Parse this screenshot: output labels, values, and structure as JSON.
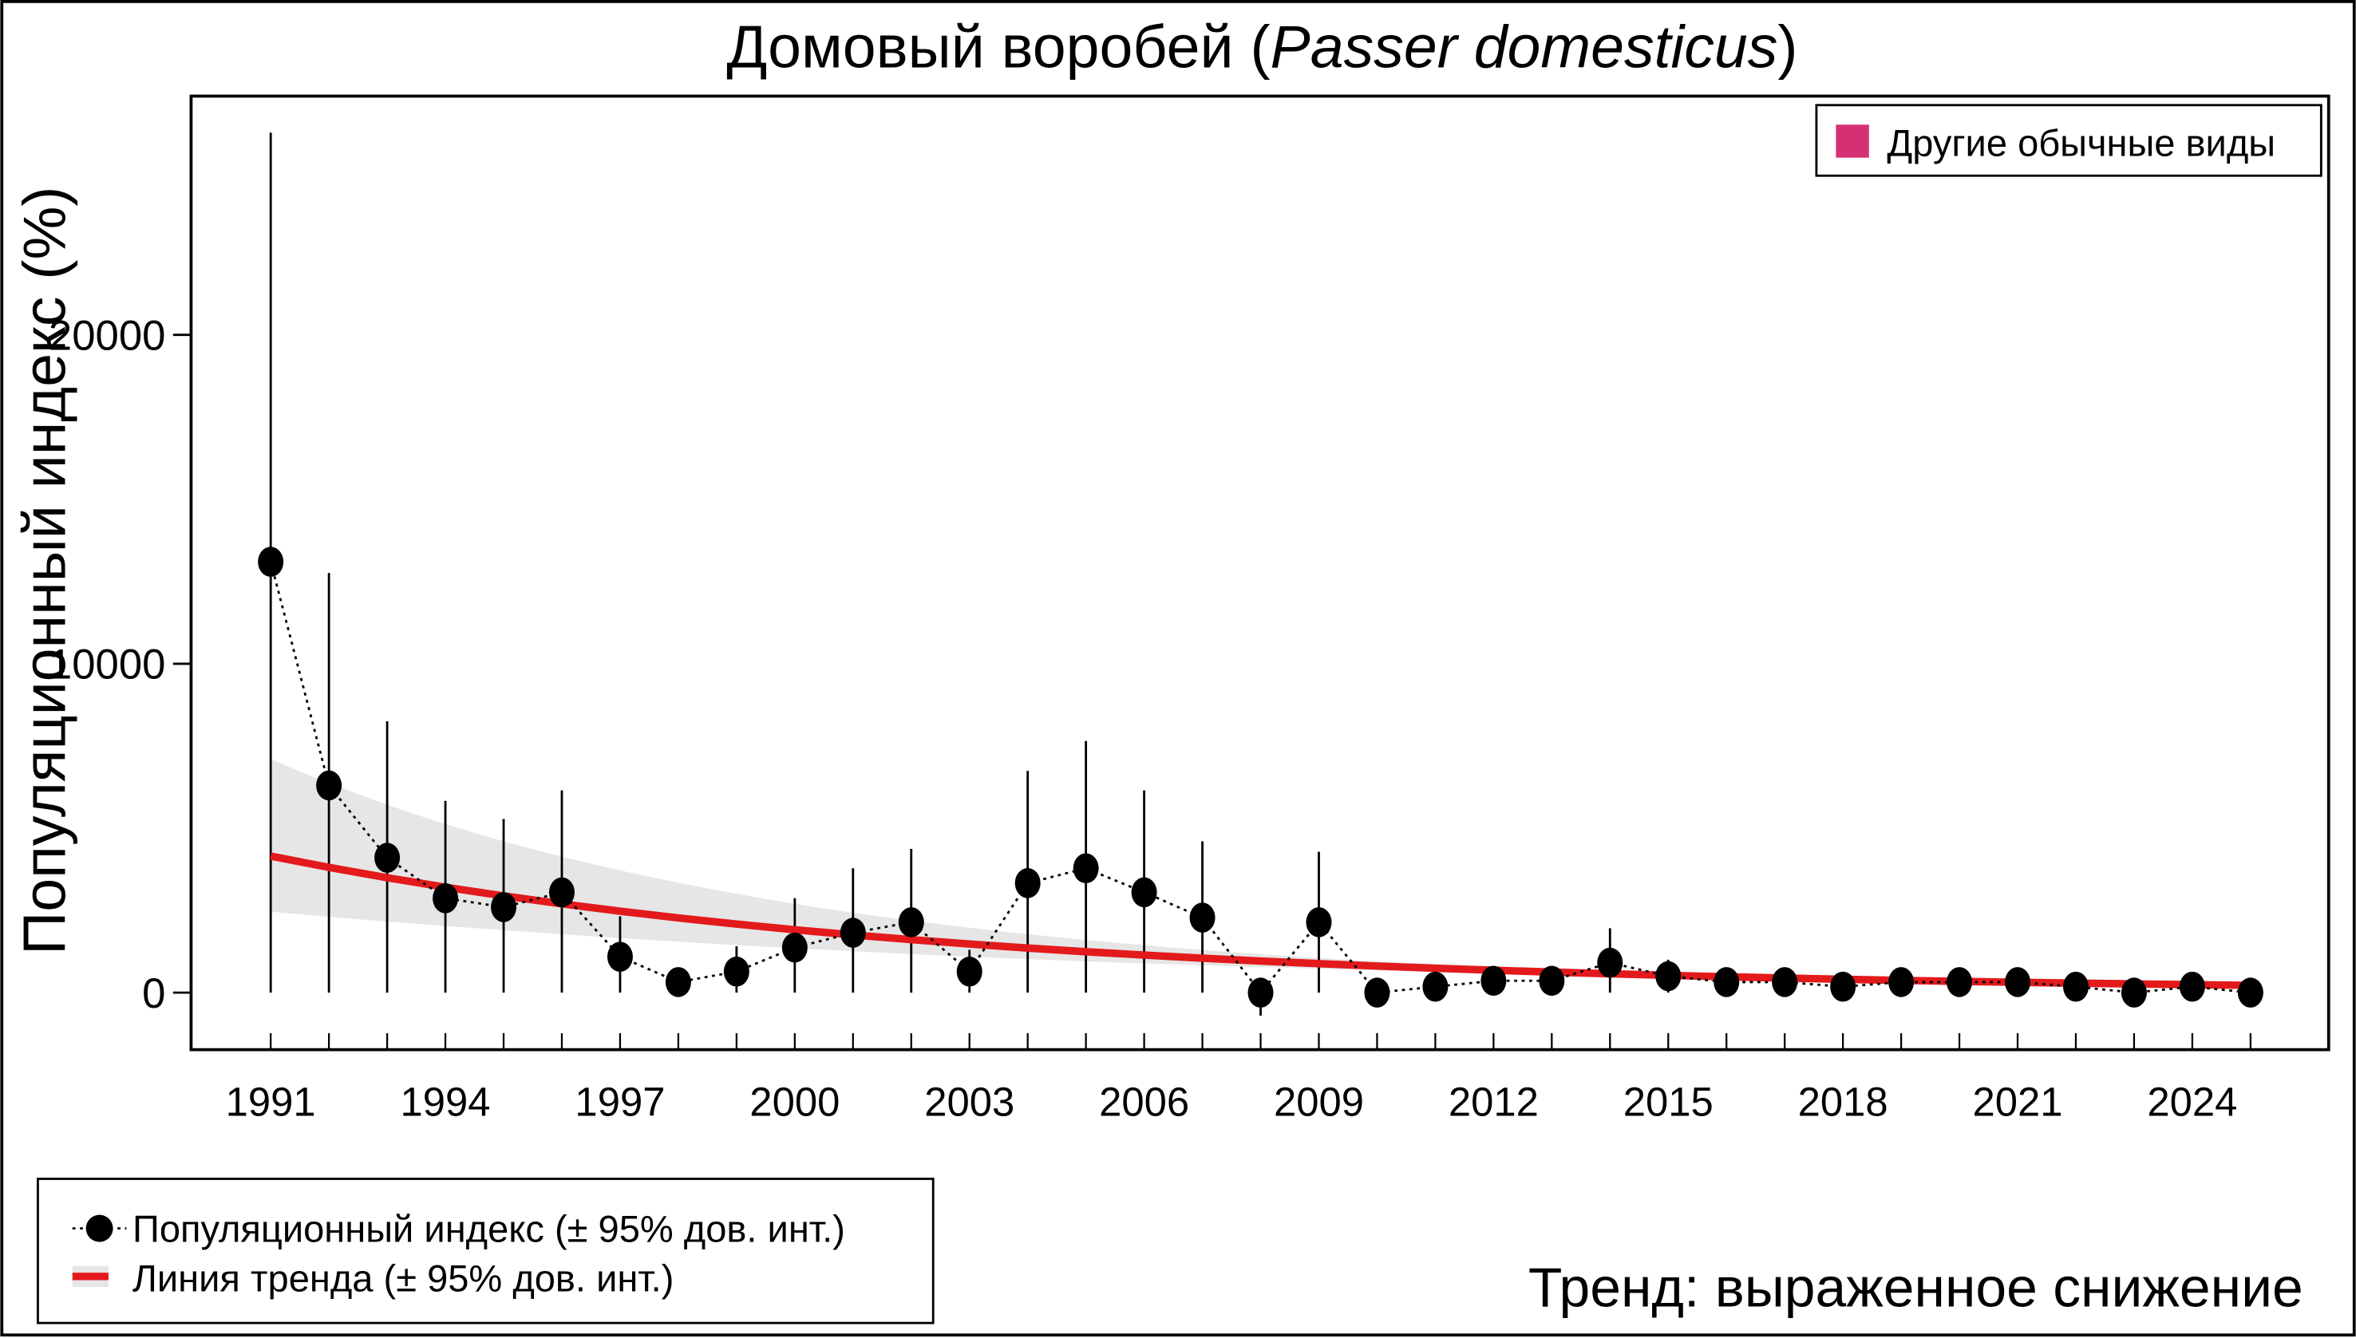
{
  "chart_data": {
    "type": "line",
    "title": "Домовый воробей (",
    "title_italic": "Passer domesticus",
    "title_end": ")",
    "ylabel": "Популяционный индекс (%)",
    "xlabel": "",
    "xlim": [
      1990.6,
      2025.4
    ],
    "ylim": [
      -1750,
      27100
    ],
    "y_ticks": [
      0,
      10000,
      20000
    ],
    "y_tick_labels": [
      "0",
      "10000",
      "20000"
    ],
    "x_tick_labels": [
      "1991",
      "1994",
      "1997",
      "2000",
      "2003",
      "2006",
      "2009",
      "2012",
      "2015",
      "2018",
      "2021",
      "2024"
    ],
    "grid": false,
    "years": [
      1991,
      1992,
      1993,
      1994,
      1995,
      1996,
      1997,
      1998,
      1999,
      2000,
      2001,
      2002,
      2003,
      2004,
      2005,
      2006,
      2007,
      2008,
      2009,
      2010,
      2011,
      2012,
      2013,
      2014,
      2015,
      2016,
      2017,
      2018,
      2019,
      2020,
      2021,
      2022,
      2023,
      2024,
      2025
    ],
    "series": [
      {
        "name": "Популяционный индекс (± 95% дов. инт.)",
        "values": [
          13100,
          6300,
          4100,
          2870,
          2600,
          3050,
          1090,
          320,
          640,
          1370,
          1820,
          2140,
          640,
          3330,
          3780,
          3050,
          2280,
          0,
          2140,
          0,
          180,
          360,
          360,
          910,
          500,
          320,
          320,
          180,
          320,
          320,
          320,
          180,
          0,
          180,
          0
        ],
        "ci_lower": [
          0,
          0,
          0,
          0,
          0,
          0,
          0,
          0,
          0,
          0,
          0,
          0,
          0,
          0,
          0,
          0,
          0,
          -700,
          0,
          0,
          0,
          0,
          0,
          0,
          0,
          0,
          0,
          0,
          0,
          0,
          0,
          0,
          0,
          0,
          0
        ],
        "ci_upper": [
          26150,
          12760,
          8250,
          5830,
          5280,
          6150,
          2320,
          500,
          1410,
          2870,
          3780,
          4370,
          1300,
          6740,
          7650,
          6150,
          4600,
          0,
          4280,
          0,
          300,
          500,
          500,
          1960,
          1000,
          500,
          500,
          300,
          500,
          500,
          500,
          300,
          0,
          300,
          0
        ],
        "color": "#000000"
      },
      {
        "name": "Линия тренда (± 95% дов. инт.)",
        "values": [
          4150,
          3808,
          3494,
          3205,
          2941,
          2698,
          2476,
          2271,
          2084,
          1912,
          1754,
          1610,
          1477,
          1355,
          1243,
          1141,
          1047,
          960,
          881,
          808,
          742,
          680,
          624,
          573,
          525,
          482,
          442,
          406,
          372,
          342,
          313,
          288,
          264,
          242,
          222
        ],
        "band_years": [
          1991,
          1995,
          2000,
          2005,
          2010,
          2015,
          2020,
          2025
        ],
        "band_upper": [
          7100,
          4600,
          2700,
          1600,
          950,
          620,
          420,
          300
        ],
        "band_lower": [
          2460,
          1900,
          1350,
          950,
          680,
          440,
          280,
          160
        ],
        "color": "#e31a1c",
        "band_color": "#e6e6e6"
      }
    ],
    "legend_top_right": {
      "label": "Другие обычные виды",
      "color": "#d63074"
    },
    "legend_bottom_left": [
      "Популяционный индекс (± 95% дов. инт.)",
      "Линия тренда (± 95% дов. инт.)"
    ],
    "annotation": {
      "text": "Тренд: выраженное снижение",
      "color": "#d40000"
    }
  }
}
